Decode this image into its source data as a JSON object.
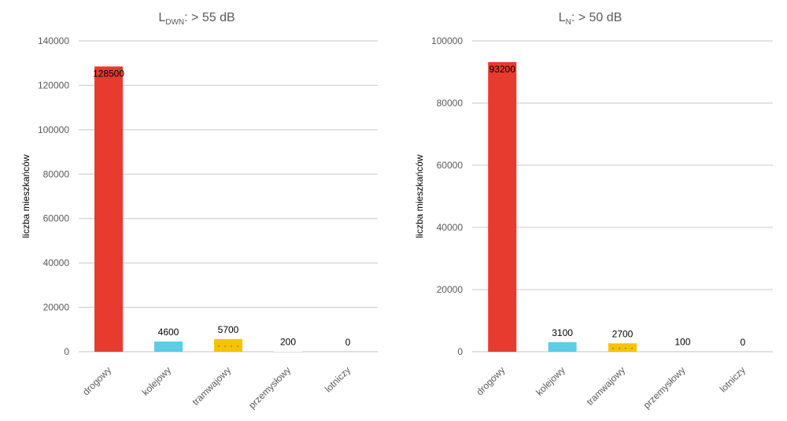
{
  "chart_data": [
    {
      "type": "bar",
      "title": "L",
      "title_sub": "DWN",
      "title_rest": ": > 55 dB",
      "ylabel": "liczba mieszkańców",
      "categories": [
        "drogowy",
        "kolejowy",
        "tramwajowy",
        "przemysłowy",
        "lotniczy"
      ],
      "values": [
        128500,
        4600,
        5700,
        200,
        0
      ],
      "value_labels": [
        "128500",
        "4600",
        "5700",
        "200",
        "0"
      ],
      "ylim": [
        0,
        140000
      ],
      "yticks": [
        "0",
        "20000",
        "40000",
        "60000",
        "80000",
        "100000",
        "120000",
        "140000"
      ],
      "grid": true,
      "colors": [
        "#e63b2e",
        "#5bcde6",
        "#f5c400",
        "#ffffff",
        "#ffffff"
      ]
    },
    {
      "type": "bar",
      "title": "L",
      "title_sub": "N",
      "title_rest": ": > 50 dB",
      "ylabel": "liczba mieszkańców",
      "categories": [
        "drogowy",
        "kolejowy",
        "tramwajowy",
        "przemysłowy",
        "lotniczy"
      ],
      "values": [
        93200,
        3100,
        2700,
        100,
        0
      ],
      "value_labels": [
        "93200",
        "3100",
        "2700",
        "100",
        "0"
      ],
      "ylim": [
        0,
        100000
      ],
      "yticks": [
        "0",
        "20000",
        "40000",
        "60000",
        "80000",
        "100000"
      ],
      "grid": true,
      "colors": [
        "#e63b2e",
        "#5bcde6",
        "#f5c400",
        "#ffffff",
        "#ffffff"
      ]
    }
  ]
}
